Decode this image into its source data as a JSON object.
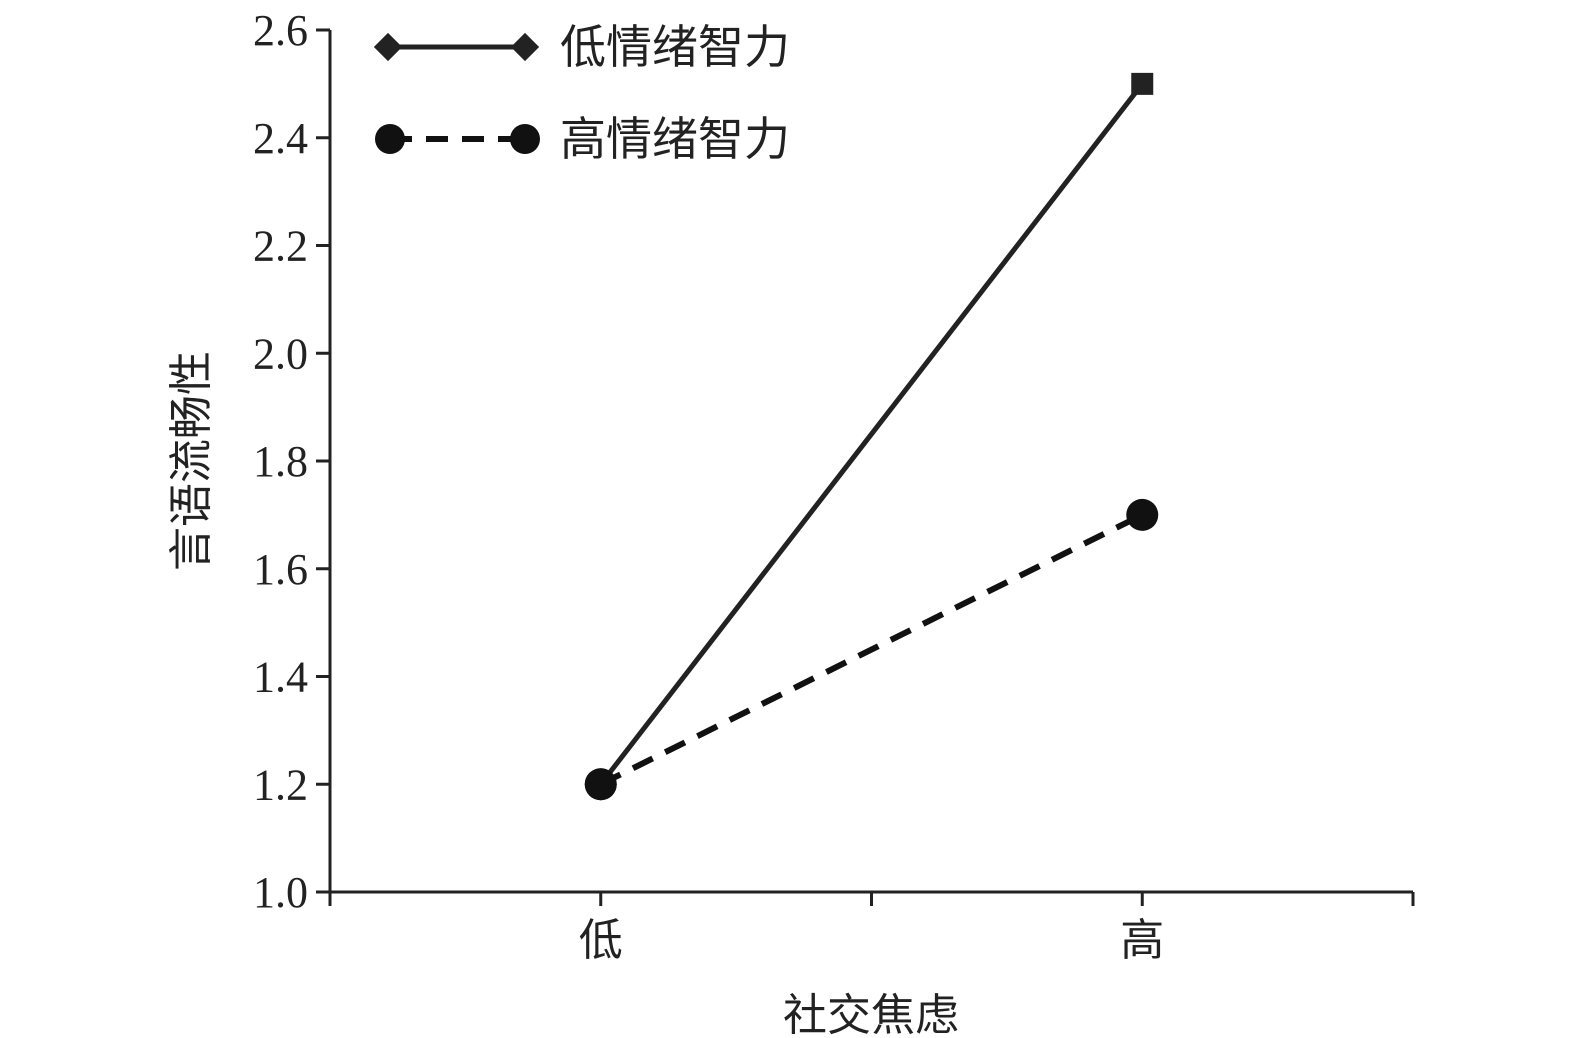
{
  "chart_data": {
    "type": "line",
    "title": "",
    "xlabel": "社交焦虑",
    "ylabel": "言语流畅性",
    "categories": [
      "低",
      "高"
    ],
    "ylim": [
      1.0,
      2.6
    ],
    "yticks": [
      "1.0",
      "1.2",
      "1.4",
      "1.6",
      "1.8",
      "2.0",
      "2.2",
      "2.4",
      "2.6"
    ],
    "grid": false,
    "legend_position": "top-left",
    "series": [
      {
        "name": "低情绪智力",
        "values": [
          1.2,
          2.5
        ],
        "line_style": "solid",
        "marker": "diamond",
        "color": "#222222"
      },
      {
        "name": "高情绪智力",
        "values": [
          1.2,
          1.7
        ],
        "line_style": "dashed",
        "marker": "circle",
        "color": "#111111"
      }
    ]
  }
}
